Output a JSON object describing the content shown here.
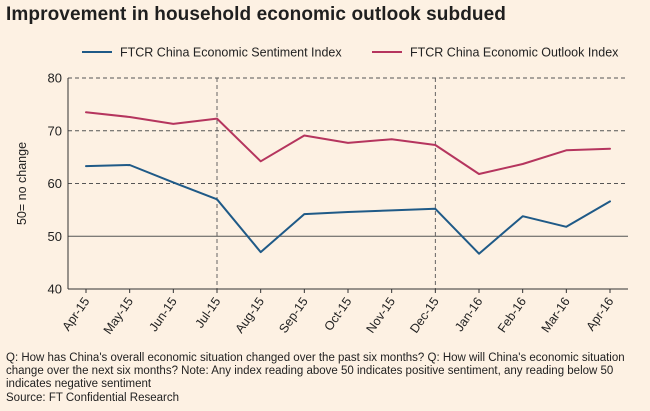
{
  "title": "Improvement in household economic outlook subdued",
  "footnote": "Q: How has China's overall economic situation changed over the past six months? Q: How will China's economic situation change over the next six months? Note: Any index reading above 50 indicates positive sentiment, any reading below 50 indicates negative sentiment",
  "source": "Source: FT Confidential Research",
  "colors": {
    "background": "#fdf1e3",
    "sentiment": "#1f5a87",
    "outlook": "#b5355e",
    "grid": "#555555"
  },
  "chart_data": {
    "type": "line",
    "categories": [
      "Apr-15",
      "May-15",
      "Jun-15",
      "Jul-15",
      "Aug-15",
      "Sep-15",
      "Oct-15",
      "Nov-15",
      "Dec-15",
      "Jan-16",
      "Feb-16",
      "Mar-16",
      "Apr-16"
    ],
    "ylabel": "50= no change",
    "ylim": [
      40,
      80
    ],
    "yticks": [
      40,
      50,
      60,
      70,
      80
    ],
    "grid": true,
    "legend_position": "top",
    "series": [
      {
        "name": "FTCR China Economic Sentiment Index",
        "color": "#1f5a87",
        "values": [
          63.3,
          63.5,
          60.2,
          57.0,
          47.0,
          54.2,
          54.6,
          54.9,
          55.2,
          46.7,
          53.8,
          51.8,
          56.6
        ]
      },
      {
        "name": "FTCR China Economic Outlook Index",
        "color": "#b5355e",
        "values": [
          73.5,
          72.6,
          71.3,
          72.3,
          64.2,
          69.1,
          67.7,
          68.4,
          67.3,
          61.8,
          63.7,
          66.3,
          66.6
        ]
      }
    ]
  }
}
